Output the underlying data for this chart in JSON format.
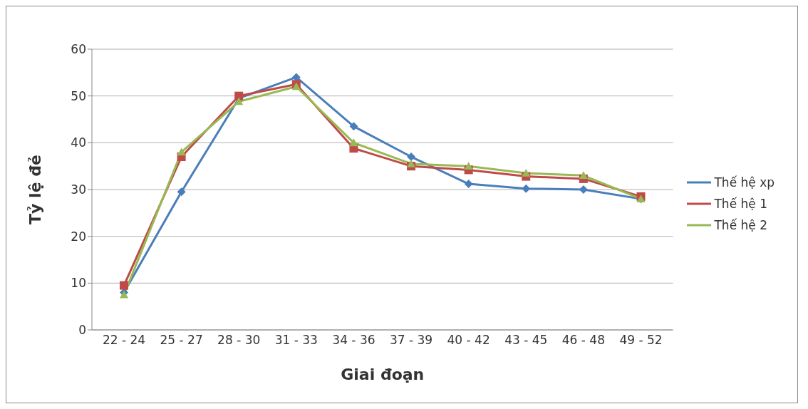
{
  "chart_data": {
    "type": "line",
    "xlabel": "Giai đoạn",
    "ylabel": "Tỷ lệ đẻ",
    "categories": [
      "22 - 24",
      "25 - 27",
      "28 - 30",
      "31 - 33",
      "34 - 36",
      "37 - 39",
      "40 - 42",
      "43 - 45",
      "46 - 48",
      "49 - 52"
    ],
    "series": [
      {
        "name": "Thế hệ xp",
        "color": "#4a7ebb",
        "marker": "diamond",
        "values": [
          8,
          29.5,
          49.5,
          54,
          43.5,
          37,
          31.2,
          30.2,
          30,
          28
        ]
      },
      {
        "name": "Thế hệ 1",
        "color": "#be4b48",
        "marker": "square",
        "values": [
          9.5,
          37,
          50,
          52.5,
          38.8,
          35,
          34.2,
          32.8,
          32.3,
          28.5
        ]
      },
      {
        "name": "Thế hệ 2",
        "color": "#98b954",
        "marker": "triangle",
        "values": [
          7.5,
          38,
          48.8,
          52,
          40,
          35.5,
          35,
          33.5,
          33,
          28
        ]
      }
    ],
    "ylim": [
      0,
      60
    ],
    "yticks": [
      0,
      10,
      20,
      30,
      40,
      50,
      60
    ],
    "grid": "y",
    "legend": "right",
    "line_style": "solid"
  }
}
